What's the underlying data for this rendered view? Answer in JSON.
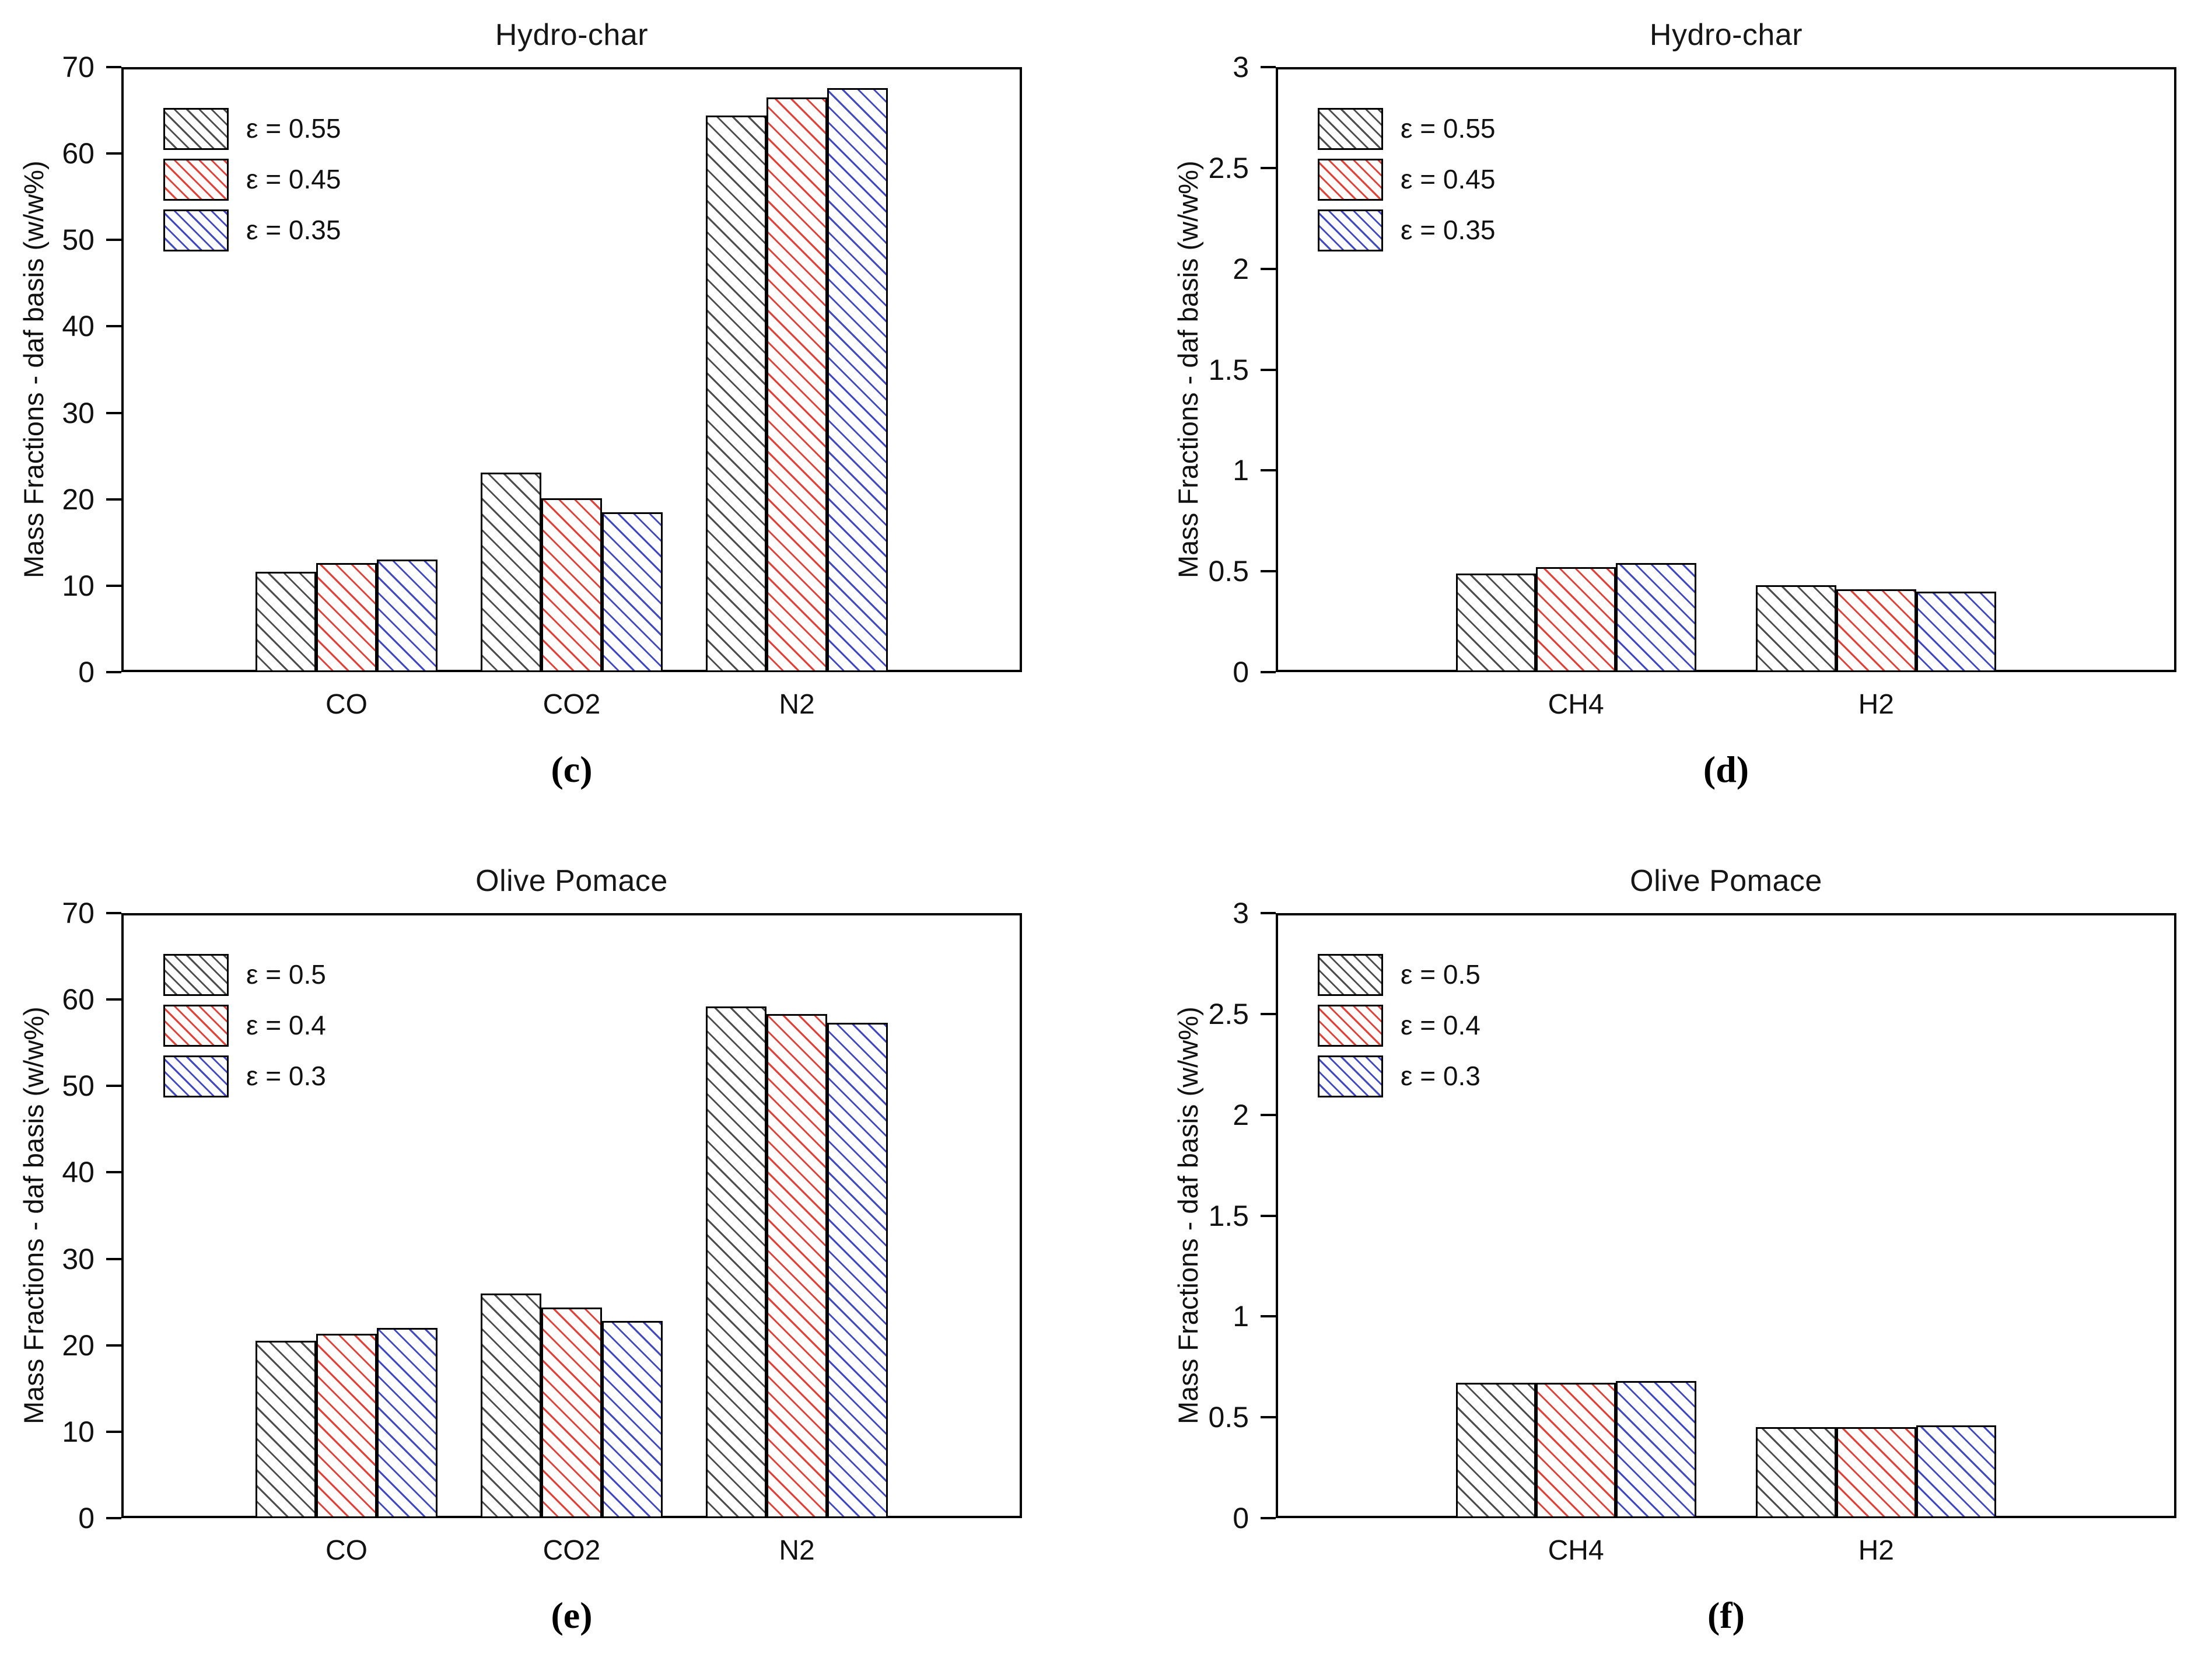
{
  "figure": {
    "background": "#ffffff",
    "axis_color": "#000000",
    "text_color": "#111111"
  },
  "chart_data": [
    {
      "id": "c",
      "type": "bar",
      "title": "Hydro-char",
      "sublabel": "(c)",
      "ylabel": "Mass Fractions - daf basis (w/w%)",
      "xlabel": "",
      "ylim": [
        0,
        70
      ],
      "yticks": [
        0,
        10,
        20,
        30,
        40,
        50,
        60,
        70
      ],
      "grid": false,
      "legend_position": "top-left",
      "categories": [
        "CO",
        "CO2",
        "N2"
      ],
      "series": [
        {
          "name": "ε = 0.55",
          "color": "#4d4d4d",
          "values": [
            11.6,
            23.1,
            64.4
          ]
        },
        {
          "name": "ε = 0.45",
          "color": "#ee3b32",
          "values": [
            12.6,
            20.1,
            66.5
          ]
        },
        {
          "name": "ε = 0.35",
          "color": "#3f48cc",
          "values": [
            13.0,
            18.5,
            67.6
          ]
        }
      ]
    },
    {
      "id": "d",
      "type": "bar",
      "title": "Hydro-char",
      "sublabel": "(d)",
      "ylabel": "Mass Fractions - daf basis (w/w%)",
      "xlabel": "",
      "ylim": [
        0,
        3
      ],
      "yticks": [
        0,
        0.5,
        1,
        1.5,
        2,
        2.5,
        3
      ],
      "grid": false,
      "legend_position": "top-left",
      "categories": [
        "CH4",
        "H2"
      ],
      "series": [
        {
          "name": "ε = 0.55",
          "color": "#4d4d4d",
          "values": [
            0.49,
            0.43
          ]
        },
        {
          "name": "ε = 0.45",
          "color": "#ee3b32",
          "values": [
            0.52,
            0.41
          ]
        },
        {
          "name": "ε = 0.35",
          "color": "#3f48cc",
          "values": [
            0.54,
            0.4
          ]
        }
      ]
    },
    {
      "id": "e",
      "type": "bar",
      "title": "Olive Pomace",
      "sublabel": "(e)",
      "ylabel": "Mass Fractions - daf basis (w/w%)",
      "xlabel": "",
      "ylim": [
        0,
        70
      ],
      "yticks": [
        0,
        10,
        20,
        30,
        40,
        50,
        60,
        70
      ],
      "grid": false,
      "legend_position": "top-left",
      "categories": [
        "CO",
        "CO2",
        "N2"
      ],
      "series": [
        {
          "name": "ε = 0.5",
          "color": "#4d4d4d",
          "values": [
            20.5,
            26.0,
            59.2
          ]
        },
        {
          "name": "ε = 0.4",
          "color": "#ee3b32",
          "values": [
            21.3,
            24.4,
            58.3
          ]
        },
        {
          "name": "ε = 0.3",
          "color": "#3f48cc",
          "values": [
            22.0,
            22.8,
            57.3
          ]
        }
      ]
    },
    {
      "id": "f",
      "type": "bar",
      "title": "Olive Pomace",
      "sublabel": "(f)",
      "ylabel": "Mass Fractions - daf basis (w/w%)",
      "xlabel": "",
      "ylim": [
        0,
        3
      ],
      "yticks": [
        0,
        0.5,
        1,
        1.5,
        2,
        2.5,
        3
      ],
      "grid": false,
      "legend_position": "top-left",
      "categories": [
        "CH4",
        "H2"
      ],
      "series": [
        {
          "name": "ε = 0.5",
          "color": "#4d4d4d",
          "values": [
            0.67,
            0.45
          ]
        },
        {
          "name": "ε = 0.4",
          "color": "#ee3b32",
          "values": [
            0.67,
            0.45
          ]
        },
        {
          "name": "ε = 0.3",
          "color": "#3f48cc",
          "values": [
            0.68,
            0.46
          ]
        }
      ]
    }
  ]
}
